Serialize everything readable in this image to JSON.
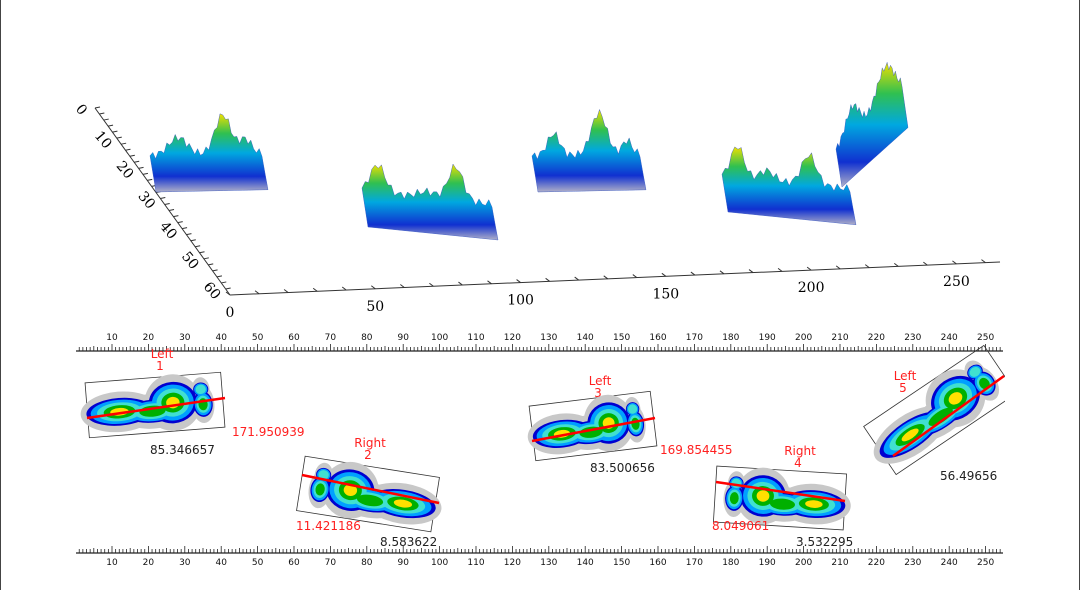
{
  "plot3d": {
    "x_ticks": [
      "0",
      "50",
      "100",
      "150",
      "200",
      "250"
    ],
    "y_ticks": [
      "0",
      "10",
      "20",
      "30",
      "40",
      "50",
      "60"
    ]
  },
  "ruler": {
    "labels": [
      "10",
      "20",
      "30",
      "40",
      "50",
      "60",
      "70",
      "80",
      "90",
      "100",
      "110",
      "120",
      "130",
      "140",
      "150",
      "160",
      "170",
      "180",
      "190",
      "200",
      "210",
      "220",
      "230",
      "240",
      "250"
    ]
  },
  "footprints": [
    {
      "side": "Left",
      "index": "1",
      "angle_value": "171.950939",
      "length_value": "85.346657"
    },
    {
      "side": "Right",
      "index": "2",
      "angle_value": "11.421186",
      "length_value": "8.583622"
    },
    {
      "side": "Left",
      "index": "3",
      "angle_value": "169.854455",
      "length_value": "83.500656"
    },
    {
      "side": "Right",
      "index": "4",
      "angle_value": "8.049061",
      "length_value": "3.532295"
    },
    {
      "side": "Left",
      "index": "5",
      "length_value": "56.49656"
    }
  ],
  "colors": {
    "label_red": "#ff2020",
    "axis_line": "#ff0000",
    "heat": [
      "#c8c8c8",
      "#0000d0",
      "#00a0ff",
      "#40e0d0",
      "#00b000",
      "#ffe000",
      "#ff9000"
    ]
  }
}
